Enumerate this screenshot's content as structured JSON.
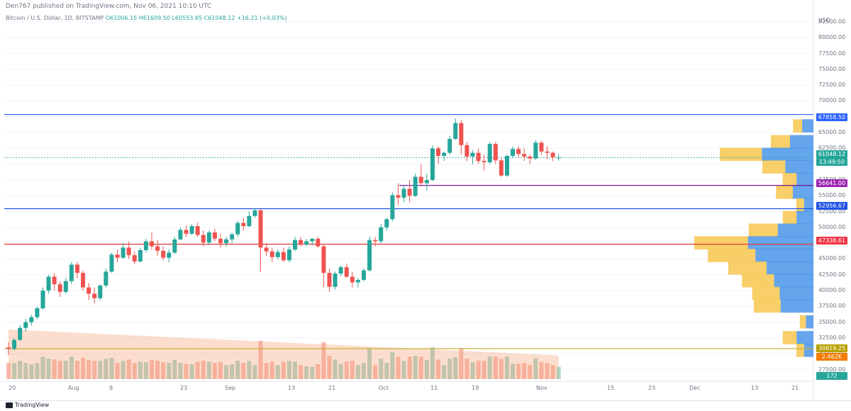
{
  "header": {
    "published": "Den767 published on TradingView.com, Nov 06, 2021 10:10 UTC"
  },
  "legend": {
    "symbol": "Bitcoin / U.S. Dollar, 1D, BITSTAMP",
    "open": "O61006.15",
    "high": "H61609.50",
    "low": "L60553.85",
    "close": "C61048.12",
    "change": "+16.21 (+0.03%)"
  },
  "price_axis": {
    "currency": "USD",
    "ticks": [
      "82500.00",
      "80000.00",
      "77500.00",
      "75000.00",
      "72500.00",
      "70000.00",
      "67500.00",
      "65000.00",
      "62500.00",
      "60000.00",
      "57500.00",
      "55000.00",
      "52500.00",
      "50000.00",
      "47500.00",
      "45000.00",
      "42500.00",
      "40000.00",
      "37500.00",
      "35000.00",
      "32500.00",
      "30000.00",
      "27500.00"
    ]
  },
  "price_tags": [
    {
      "label": "67858.50",
      "color": "#2962ff"
    },
    {
      "label": "61048.12",
      "color": "#26a69a"
    },
    {
      "label": "13:49:50",
      "color": "#26a69a"
    },
    {
      "label": "56641.00",
      "color": "#9c27b0"
    },
    {
      "label": "52956.67",
      "color": "#1e53e5"
    },
    {
      "label": "47338.61",
      "color": "#f23645"
    },
    {
      "label": "30819.25",
      "color": "#b8a000"
    },
    {
      "label": "2.462K",
      "color": "#f57c00"
    },
    {
      "label": "172",
      "color": "#26a69a"
    }
  ],
  "time_axis": [
    "20",
    "Aug",
    "9",
    "23",
    "Sep",
    "13",
    "21",
    "Oct",
    "11",
    "19",
    "Nov",
    "15",
    "23",
    "Dec",
    "13",
    "21"
  ],
  "horizontal_lines": [
    {
      "name": "resistance-line",
      "price": 67858.5,
      "color": "#2962ff"
    },
    {
      "name": "support-line-purple",
      "price": 56641,
      "color": "#7b1fa2"
    },
    {
      "name": "support-line-blue",
      "price": 52956.67,
      "color": "#1e53e5"
    },
    {
      "name": "support-line-red",
      "price": 47338.61,
      "color": "#e53935"
    },
    {
      "name": "support-line-yellow",
      "price": 30819.25,
      "color": "#c9b03c"
    }
  ],
  "chart_data": {
    "type": "candlestick",
    "ylim": [
      26000,
      83500
    ],
    "candles": [
      [
        31000,
        31800,
        29800,
        30800
      ],
      [
        30800,
        32500,
        30500,
        32200
      ],
      [
        32200,
        34500,
        32000,
        34100
      ],
      [
        34100,
        35500,
        33500,
        35000
      ],
      [
        35000,
        36200,
        34500,
        35800
      ],
      [
        35800,
        37500,
        35500,
        37200
      ],
      [
        37200,
        40500,
        37000,
        40000
      ],
      [
        40000,
        42500,
        39500,
        42200
      ],
      [
        42200,
        42800,
        40000,
        41000
      ],
      [
        41000,
        41500,
        39000,
        39800
      ],
      [
        39800,
        42000,
        39500,
        41500
      ],
      [
        41500,
        44500,
        41000,
        44100
      ],
      [
        44100,
        44500,
        42000,
        42800
      ],
      [
        42800,
        43200,
        40000,
        40500
      ],
      [
        40500,
        41200,
        38500,
        39500
      ],
      [
        39500,
        40500,
        38000,
        38800
      ],
      [
        38800,
        41000,
        38500,
        40800
      ],
      [
        40800,
        43500,
        40500,
        43000
      ],
      [
        43000,
        46000,
        42800,
        45700
      ],
      [
        45700,
        46500,
        44500,
        45200
      ],
      [
        45200,
        47500,
        45000,
        46800
      ],
      [
        46800,
        47800,
        45000,
        45600
      ],
      [
        45600,
        46200,
        44200,
        44600
      ],
      [
        44600,
        46800,
        44500,
        46400
      ],
      [
        46400,
        48200,
        46000,
        47800
      ],
      [
        47800,
        49200,
        46500,
        47000
      ],
      [
        47000,
        48000,
        45500,
        46300
      ],
      [
        46300,
        47000,
        44800,
        45200
      ],
      [
        45200,
        46500,
        44500,
        46000
      ],
      [
        46000,
        48500,
        45800,
        48100
      ],
      [
        48100,
        50000,
        48000,
        49600
      ],
      [
        49600,
        50300,
        48500,
        49000
      ],
      [
        49000,
        50500,
        48800,
        50200
      ],
      [
        50200,
        50800,
        48500,
        48800
      ],
      [
        48800,
        49500,
        47000,
        47600
      ],
      [
        47600,
        49500,
        47200,
        49200
      ],
      [
        49200,
        49800,
        47800,
        48200
      ],
      [
        48200,
        49000,
        46800,
        47500
      ],
      [
        47500,
        48500,
        47000,
        48100
      ],
      [
        48100,
        49200,
        47500,
        48900
      ],
      [
        48900,
        51000,
        48500,
        50700
      ],
      [
        50700,
        51500,
        49500,
        50200
      ],
      [
        50200,
        52500,
        50000,
        51800
      ],
      [
        51800,
        53000,
        51500,
        52700
      ],
      [
        52700,
        52900,
        43000,
        46800
      ],
      [
        46800,
        47500,
        45500,
        46200
      ],
      [
        46200,
        46800,
        44500,
        45300
      ],
      [
        45300,
        46500,
        45000,
        46100
      ],
      [
        46100,
        46800,
        44500,
        44800
      ],
      [
        44800,
        47000,
        44500,
        46500
      ],
      [
        46500,
        48500,
        46200,
        48000
      ],
      [
        48000,
        48500,
        47000,
        47300
      ],
      [
        47300,
        48200,
        47000,
        47800
      ],
      [
        47800,
        48300,
        47200,
        48200
      ],
      [
        48200,
        48500,
        46800,
        47000
      ],
      [
        47000,
        47400,
        40500,
        42800
      ],
      [
        42800,
        43500,
        39800,
        40600
      ],
      [
        40600,
        43000,
        40200,
        42700
      ],
      [
        42700,
        44000,
        42300,
        43700
      ],
      [
        43700,
        44300,
        42000,
        42200
      ],
      [
        42200,
        43000,
        40500,
        41300
      ],
      [
        41300,
        42000,
        40500,
        41700
      ],
      [
        41700,
        43500,
        41500,
        43200
      ],
      [
        43200,
        48500,
        43000,
        48000
      ],
      [
        48000,
        48500,
        47000,
        47800
      ],
      [
        47800,
        50500,
        47500,
        50000
      ],
      [
        50000,
        51500,
        49500,
        51300
      ],
      [
        51300,
        55500,
        51000,
        55100
      ],
      [
        55100,
        57000,
        53500,
        54700
      ],
      [
        54700,
        56500,
        54000,
        56100
      ],
      [
        56100,
        57500,
        54000,
        55000
      ],
      [
        55000,
        58500,
        54800,
        58000
      ],
      [
        58000,
        60000,
        56500,
        57000
      ],
      [
        57000,
        58500,
        55800,
        57500
      ],
      [
        57500,
        63000,
        57300,
        62500
      ],
      [
        62500,
        62800,
        60000,
        61300
      ],
      [
        61300,
        62000,
        60500,
        61800
      ],
      [
        61800,
        64500,
        61500,
        64000
      ],
      [
        64000,
        67200,
        63800,
        66500
      ],
      [
        66500,
        67000,
        61500,
        63000
      ],
      [
        63000,
        63500,
        60500,
        61200
      ],
      [
        61200,
        62200,
        60000,
        61800
      ],
      [
        61800,
        62500,
        60000,
        60500
      ],
      [
        60500,
        61500,
        59000,
        60300
      ],
      [
        60300,
        63500,
        60000,
        63200
      ],
      [
        63200,
        63500,
        60000,
        60600
      ],
      [
        60600,
        61000,
        58000,
        58200
      ],
      [
        58200,
        61500,
        58000,
        61300
      ],
      [
        61300,
        62800,
        61000,
        62400
      ],
      [
        62400,
        62800,
        61000,
        61600
      ],
      [
        61600,
        62500,
        60500,
        61200
      ],
      [
        61200,
        61500,
        60000,
        60900
      ],
      [
        60900,
        63800,
        60700,
        63400
      ],
      [
        63400,
        63700,
        61500,
        62000
      ],
      [
        62000,
        62800,
        60800,
        61800
      ],
      [
        61800,
        62000,
        60500,
        61100
      ],
      [
        61006,
        61609,
        60553,
        61048
      ]
    ],
    "volume_scale_max": 2462
  }
}
